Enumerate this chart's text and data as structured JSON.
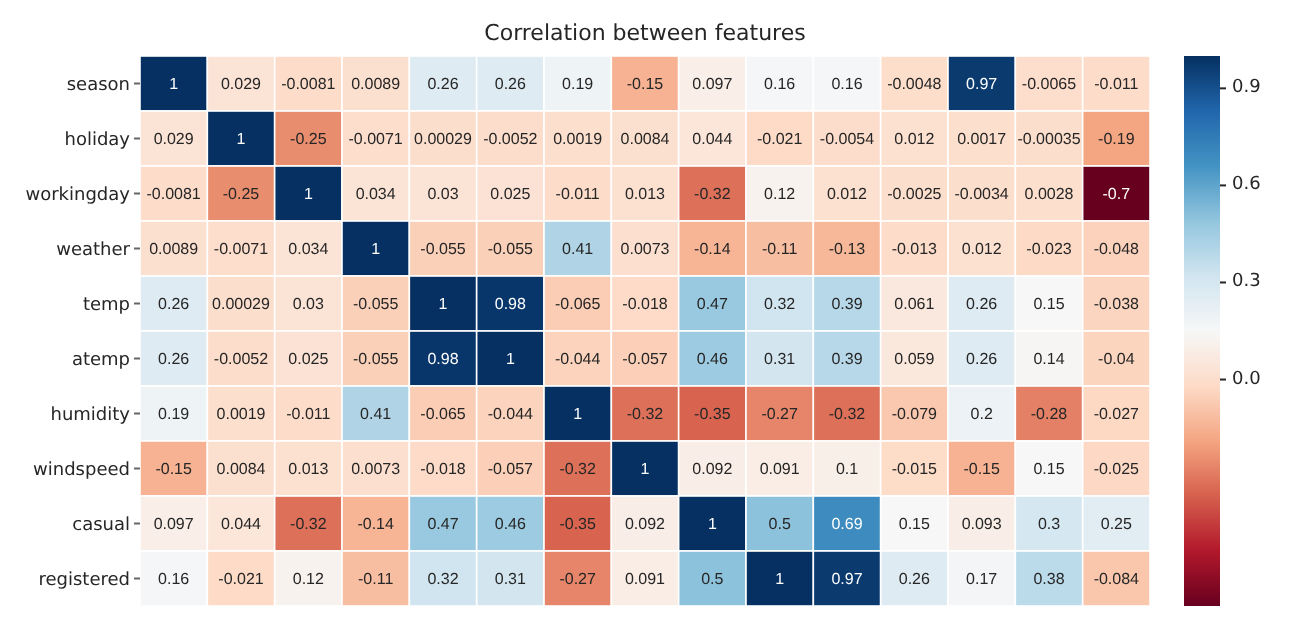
{
  "chart_data": {
    "type": "heatmap",
    "title": "Correlation between features",
    "categories": [
      null,
      null,
      null,
      null,
      null,
      null,
      null,
      null,
      null,
      null,
      null,
      null,
      null,
      null,
      null
    ],
    "y_categories": [
      "season",
      "holiday",
      "workingday",
      "weather",
      "temp",
      "atemp",
      "humidity",
      "windspeed",
      "casual",
      "registered"
    ],
    "cells": [
      [
        1,
        0.029,
        -0.0081,
        0.0089,
        0.26,
        0.26,
        0.19,
        -0.15,
        0.097,
        0.16,
        0.16,
        -0.0048,
        0.97,
        -0.0065,
        -0.011
      ],
      [
        0.029,
        1,
        -0.25,
        -0.0071,
        0.00029,
        -0.0052,
        0.0019,
        0.0084,
        0.044,
        -0.021,
        -0.0054,
        0.012,
        0.0017,
        -0.00035,
        -0.19
      ],
      [
        -0.0081,
        -0.25,
        1,
        0.034,
        0.03,
        0.025,
        -0.011,
        0.013,
        -0.32,
        0.12,
        0.012,
        -0.0025,
        -0.0034,
        0.0028,
        -0.7
      ],
      [
        0.0089,
        -0.0071,
        0.034,
        1,
        -0.055,
        -0.055,
        0.41,
        0.0073,
        -0.14,
        -0.11,
        -0.13,
        -0.013,
        0.012,
        -0.023,
        -0.048
      ],
      [
        0.26,
        0.00029,
        0.03,
        -0.055,
        1,
        0.98,
        -0.065,
        -0.018,
        0.47,
        0.32,
        0.39,
        0.061,
        0.26,
        0.15,
        -0.038
      ],
      [
        0.26,
        -0.0052,
        0.025,
        -0.055,
        0.98,
        1,
        -0.044,
        -0.057,
        0.46,
        0.31,
        0.39,
        0.059,
        0.26,
        0.14,
        -0.04
      ],
      [
        0.19,
        0.0019,
        -0.011,
        0.41,
        -0.065,
        -0.044,
        1,
        -0.32,
        -0.35,
        -0.27,
        -0.32,
        -0.079,
        0.2,
        -0.28,
        -0.027
      ],
      [
        -0.15,
        0.0084,
        0.013,
        0.0073,
        -0.018,
        -0.057,
        -0.32,
        1,
        0.092,
        0.091,
        0.1,
        -0.015,
        -0.15,
        0.15,
        -0.025
      ],
      [
        0.097,
        0.044,
        -0.32,
        -0.14,
        0.47,
        0.46,
        -0.35,
        0.092,
        1,
        0.5,
        0.69,
        0.15,
        0.093,
        0.3,
        0.25
      ],
      [
        0.16,
        -0.021,
        0.12,
        -0.11,
        0.32,
        0.31,
        -0.27,
        0.091,
        0.5,
        1,
        0.97,
        0.26,
        0.17,
        0.38,
        -0.084
      ]
    ],
    "clim": [
      -0.7,
      1
    ],
    "cticks": [
      {
        "value": 0,
        "label": "0.0"
      },
      {
        "value": 0.3,
        "label": "0.3"
      },
      {
        "value": 0.6,
        "label": "0.6"
      },
      {
        "value": 0.9,
        "label": "0.9"
      }
    ],
    "data_labels": true
  }
}
